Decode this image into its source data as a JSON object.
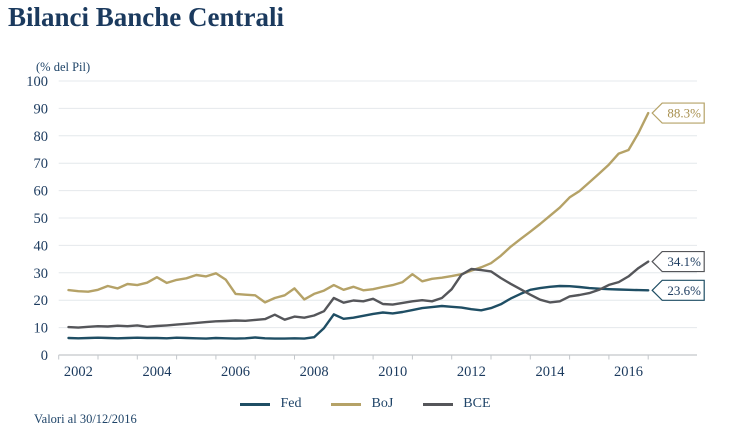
{
  "page": {
    "title": "Bilanci Banche Centrali",
    "subtitle": "(% del Pil)",
    "footnote": "Valori al 30/12/2016"
  },
  "colors": {
    "navy_text": "#1b3a5e",
    "fed": "#1f4e64",
    "boj": "#b5a267",
    "bce": "#55565a",
    "gridline": "#e4e8ec",
    "axis": "#c3c7cb",
    "callout_fill": "#ffffff"
  },
  "legend": [
    {
      "id": "fed",
      "label": "Fed",
      "color": "#1f4e64"
    },
    {
      "id": "boj",
      "label": "BoJ",
      "color": "#b5a267"
    },
    {
      "id": "bce",
      "label": "BCE",
      "color": "#55565a"
    }
  ],
  "chart_data": {
    "type": "line",
    "title": "Bilanci Banche Centrali",
    "ylabel": "(% del Pil)",
    "x_unit": "anno (valori trimestrali, fine trimestre)",
    "xlim": [
      2002,
      2018
    ],
    "ylim": [
      0,
      100
    ],
    "grid": "horizontal",
    "legend_position": "bottom",
    "y_ticks": [
      0,
      10,
      20,
      30,
      40,
      50,
      60,
      70,
      80,
      90,
      100
    ],
    "x_tick_years": [
      2002,
      2003,
      2004,
      2005,
      2006,
      2007,
      2008,
      2009,
      2010,
      2011,
      2012,
      2013,
      2014,
      2015,
      2016,
      2017
    ],
    "x_tick_labels": [
      "2002",
      "2004",
      "2006",
      "2008",
      "2010",
      "2012",
      "2014",
      "2016"
    ],
    "x": [
      2002.25,
      2002.5,
      2002.75,
      2003,
      2003.25,
      2003.5,
      2003.75,
      2004,
      2004.25,
      2004.5,
      2004.75,
      2005,
      2005.25,
      2005.5,
      2005.75,
      2006,
      2006.25,
      2006.5,
      2006.75,
      2007,
      2007.25,
      2007.5,
      2007.75,
      2008,
      2008.25,
      2008.5,
      2008.75,
      2009,
      2009.25,
      2009.5,
      2009.75,
      2010,
      2010.25,
      2010.5,
      2010.75,
      2011,
      2011.25,
      2011.5,
      2011.75,
      2012,
      2012.25,
      2012.5,
      2012.75,
      2013,
      2013.25,
      2013.5,
      2013.75,
      2014,
      2014.25,
      2014.5,
      2014.75,
      2015,
      2015.25,
      2015.5,
      2015.75,
      2016,
      2016.25,
      2016.5,
      2016.75,
      2017
    ],
    "series": [
      {
        "name": "Fed",
        "color": "#1f4e64",
        "end_label": "23.6%",
        "end_label_text_color": "#1b3a5e",
        "values": [
          6.2,
          6.1,
          6.2,
          6.3,
          6.2,
          6.1,
          6.2,
          6.3,
          6.2,
          6.2,
          6.1,
          6.3,
          6.2,
          6.1,
          6.0,
          6.2,
          6.1,
          6.0,
          6.1,
          6.4,
          6.1,
          6.0,
          6.0,
          6.1,
          6.0,
          6.5,
          9.8,
          14.8,
          13.2,
          13.6,
          14.3,
          15.0,
          15.5,
          15.2,
          15.7,
          16.4,
          17.1,
          17.5,
          17.9,
          17.6,
          17.3,
          16.7,
          16.3,
          17.1,
          18.5,
          20.6,
          22.3,
          23.8,
          24.4,
          24.9,
          25.2,
          25.1,
          24.8,
          24.4,
          24.2,
          24.0,
          23.9,
          23.8,
          23.7,
          23.6
        ]
      },
      {
        "name": "BoJ",
        "color": "#b5a267",
        "end_label": "88.3%",
        "end_label_text_color": "#a8904f",
        "values": [
          23.7,
          23.3,
          23.1,
          23.8,
          25.2,
          24.3,
          25.9,
          25.5,
          26.4,
          28.4,
          26.3,
          27.4,
          28.0,
          29.2,
          28.7,
          29.8,
          27.5,
          22.3,
          22.0,
          21.8,
          19.2,
          20.8,
          21.8,
          24.3,
          20.3,
          22.3,
          23.5,
          25.5,
          23.8,
          24.9,
          23.6,
          24.0,
          24.8,
          25.5,
          26.6,
          29.5,
          26.9,
          27.8,
          28.2,
          28.8,
          29.5,
          30.8,
          32.0,
          33.5,
          36.2,
          39.5,
          42.3,
          45.0,
          47.8,
          50.8,
          53.8,
          57.5,
          59.8,
          63.0,
          66.2,
          69.5,
          73.5,
          74.8,
          81.0,
          88.3
        ]
      },
      {
        "name": "BCE",
        "color": "#55565a",
        "end_label": "34.1%",
        "end_label_text_color": "#1b3a5e",
        "values": [
          10.2,
          10.0,
          10.3,
          10.5,
          10.4,
          10.7,
          10.5,
          10.8,
          10.3,
          10.6,
          10.8,
          11.1,
          11.4,
          11.7,
          12.0,
          12.3,
          12.4,
          12.6,
          12.5,
          12.8,
          13.1,
          14.7,
          12.9,
          14.0,
          13.6,
          14.4,
          16.0,
          20.8,
          19.1,
          19.9,
          19.6,
          20.5,
          18.6,
          18.4,
          19.0,
          19.6,
          20.0,
          19.6,
          20.8,
          24.0,
          29.3,
          31.4,
          31.0,
          30.5,
          28.1,
          26.0,
          24.0,
          22.0,
          20.2,
          19.2,
          19.6,
          21.4,
          21.9,
          22.6,
          23.8,
          25.6,
          26.6,
          28.7,
          31.7,
          34.1
        ]
      }
    ]
  }
}
